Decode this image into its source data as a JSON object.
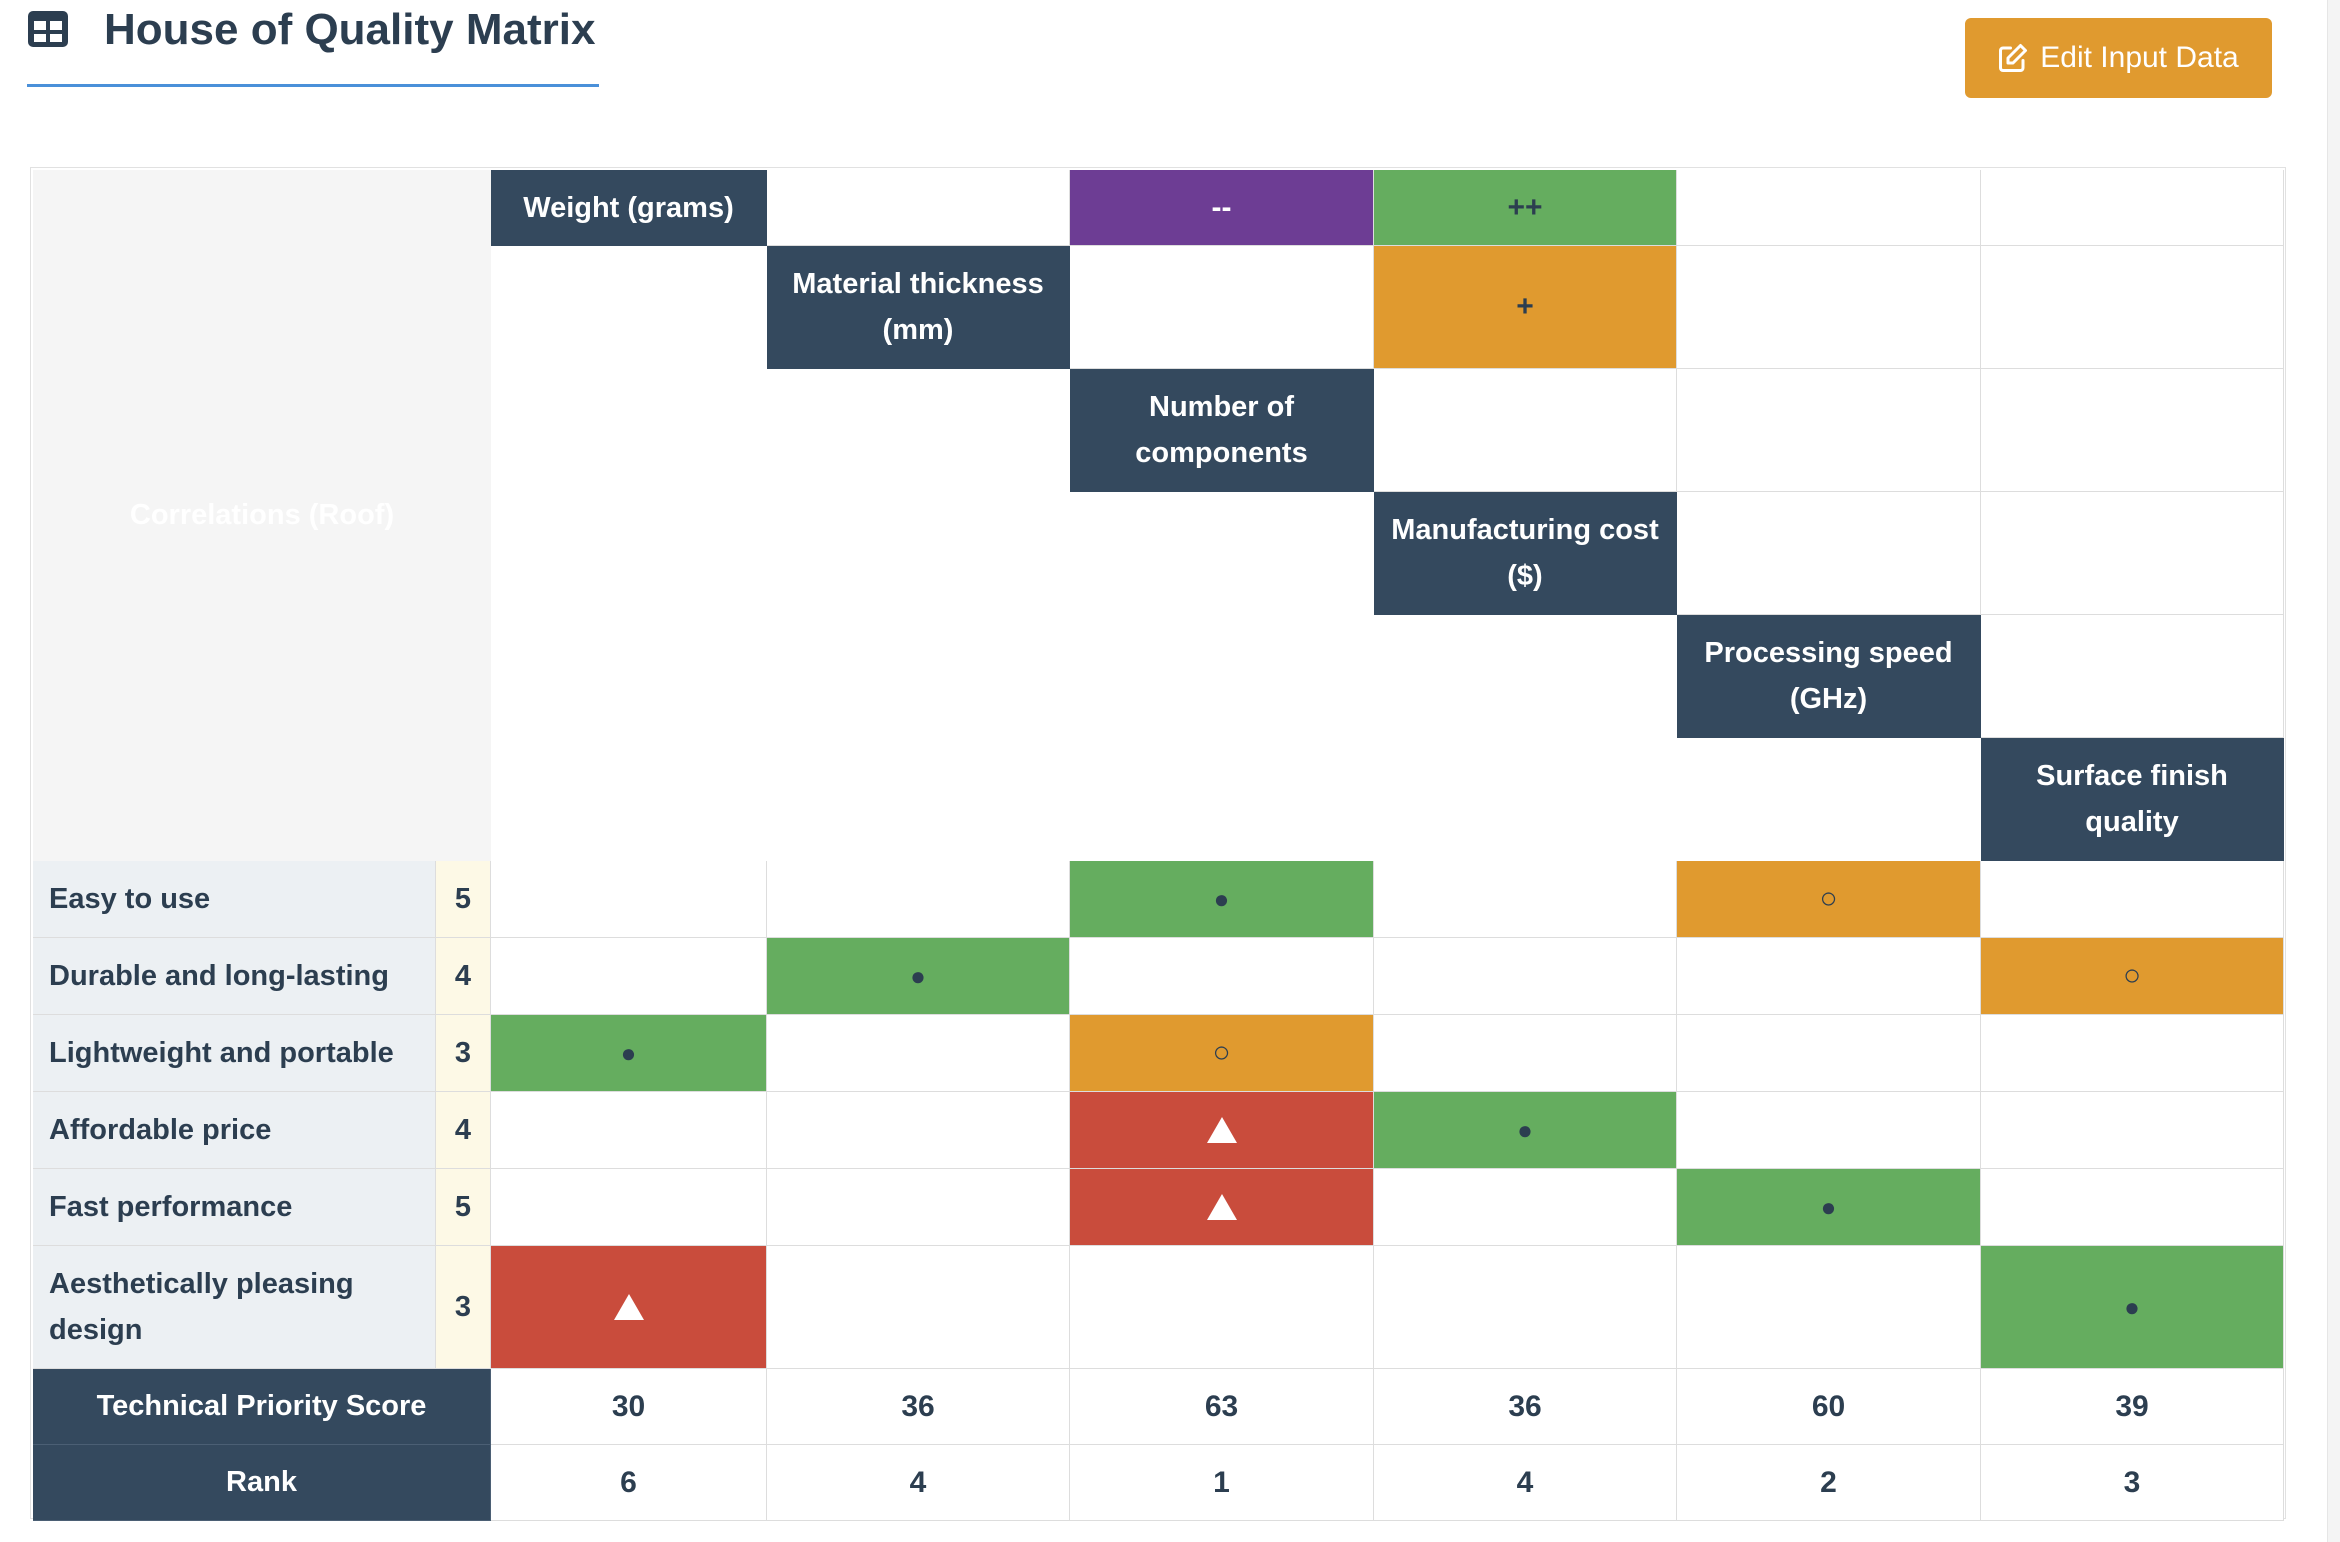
{
  "page": {
    "title": "House of Quality Matrix",
    "edit_button_label": "Edit Input Data"
  },
  "colors": {
    "header_dark": "#34495e",
    "strong": "#65ad5f",
    "moderate": "#e09a2f",
    "weak": "#c94c3c",
    "strong_negative": "#6d3d94",
    "strong_positive": "#65ad5f",
    "positive": "#e09a2f"
  },
  "roof": {
    "label": "Correlations (Roof)",
    "correlations": [
      {
        "row": 0,
        "col": 2,
        "symbol": "--",
        "type": "strong_negative"
      },
      {
        "row": 0,
        "col": 3,
        "symbol": "++",
        "type": "strong_positive"
      },
      {
        "row": 1,
        "col": 3,
        "symbol": "+",
        "type": "positive"
      }
    ]
  },
  "technical_requirements": [
    "Weight (grams)",
    "Material thickness (mm)",
    "Number of components",
    "Manufacturing cost ($)",
    "Processing speed (GHz)",
    "Surface finish quality"
  ],
  "customer_requirements": [
    {
      "label": "Easy to use",
      "importance": "5"
    },
    {
      "label": "Durable and long-lasting",
      "importance": "4"
    },
    {
      "label": "Lightweight and portable",
      "importance": "3"
    },
    {
      "label": "Affordable price",
      "importance": "4"
    },
    {
      "label": "Fast performance",
      "importance": "5"
    },
    {
      "label": "Aesthetically pleasing design",
      "importance": "3"
    }
  ],
  "relationships": [
    [
      "",
      "",
      "strong",
      "",
      "moderate",
      ""
    ],
    [
      "",
      "strong",
      "",
      "",
      "",
      "moderate"
    ],
    [
      "strong",
      "",
      "moderate",
      "",
      "",
      ""
    ],
    [
      "",
      "",
      "weak",
      "strong",
      "",
      ""
    ],
    [
      "",
      "",
      "weak",
      "",
      "strong",
      ""
    ],
    [
      "weak",
      "",
      "",
      "",
      "",
      "strong"
    ]
  ],
  "symbols": {
    "strong": "●",
    "moderate": "○",
    "weak": "triangle-icon"
  },
  "footer": {
    "score_label": "Technical Priority Score",
    "rank_label": "Rank",
    "scores": [
      "30",
      "36",
      "63",
      "36",
      "60",
      "39"
    ],
    "ranks": [
      "6",
      "4",
      "1",
      "4",
      "2",
      "3"
    ]
  }
}
